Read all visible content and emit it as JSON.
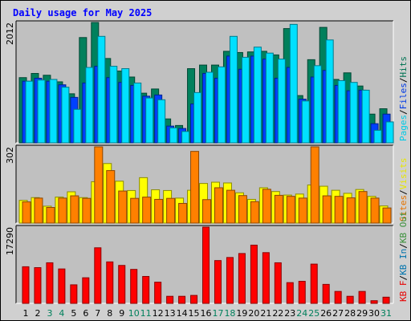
{
  "title": "Daily usage for May 2025",
  "colors": {
    "hits": "#00805c",
    "files": "#0040ff",
    "pages": "#00e0ff",
    "visits": "#ffff00",
    "sites": "#ff8000",
    "kb_in": "#0080c0",
    "kb_out": "#40a040",
    "kb_f": "#ff0000",
    "plot_bg": "#c0c0c0",
    "frame_bg": "#d0d0d0",
    "weekend": "#00805c",
    "weekday": "#000000"
  },
  "chart_data": [
    {
      "type": "bar",
      "name": "hits-files-pages",
      "ymax_label": "2012",
      "ymax": 2012,
      "legend": [
        {
          "text": "Pages",
          "key": "pages"
        },
        {
          "text": "/",
          "key": "sep"
        },
        {
          "text": "Files",
          "key": "files"
        },
        {
          "text": "/",
          "key": "sep"
        },
        {
          "text": "Hits",
          "key": "hits"
        }
      ],
      "series": [
        {
          "name": "Hits",
          "key": "hits",
          "values": [
            1090,
            1160,
            1130,
            1020,
            820,
            1760,
            2012,
            1410,
            1200,
            1100,
            830,
            900,
            400,
            290,
            1240,
            1300,
            1300,
            1530,
            1510,
            1520,
            1530,
            1470,
            1910,
            790,
            1390,
            1930,
            1060,
            1170,
            950,
            480,
            570
          ]
        },
        {
          "name": "Files",
          "key": "files",
          "values": [
            1030,
            1080,
            1030,
            970,
            760,
            1000,
            1280,
            1090,
            1010,
            960,
            780,
            800,
            280,
            240,
            650,
            1160,
            1080,
            1450,
            1230,
            1450,
            1400,
            1080,
            1260,
            730,
            1100,
            1210,
            960,
            870,
            880,
            320,
            480
          ]
        },
        {
          "name": "Pages",
          "key": "pages",
          "values": [
            1030,
            1050,
            1060,
            930,
            560,
            1260,
            1780,
            1280,
            1240,
            1000,
            750,
            720,
            250,
            190,
            840,
            1180,
            1270,
            1780,
            1430,
            1600,
            1500,
            1400,
            1980,
            700,
            1290,
            1720,
            1040,
            1010,
            880,
            210,
            350
          ]
        }
      ]
    },
    {
      "type": "bar",
      "name": "visits-sites",
      "ymax_label": "302",
      "ymax": 302,
      "legend": [
        {
          "text": "Sites",
          "key": "sites"
        },
        {
          "text": "/",
          "key": "sep"
        },
        {
          "text": "Visits",
          "key": "visits"
        }
      ],
      "series": [
        {
          "name": "Visits",
          "key": "visits",
          "values": [
            90,
            101,
            67,
            103,
            124,
            101,
            164,
            236,
            166,
            129,
            180,
            132,
            129,
            99,
            130,
            157,
            162,
            159,
            120,
            94,
            140,
            125,
            111,
            115,
            151,
            146,
            130,
            118,
            133,
            106,
            68
          ]
        },
        {
          "name": "Sites",
          "key": "sites",
          "values": [
            84,
            99,
            62,
            99,
            108,
            98,
            302,
            208,
            127,
            98,
            103,
            94,
            98,
            78,
            284,
            93,
            140,
            130,
            109,
            85,
            134,
            110,
            106,
            99,
            302,
            108,
            106,
            100,
            125,
            99,
            60
          ]
        }
      ]
    },
    {
      "type": "bar",
      "name": "kbytes",
      "ymax_label": "17290",
      "ymax": 17290,
      "legend": [
        {
          "text": "KB F",
          "key": "kb_f"
        },
        {
          "text": "/",
          "key": "sep"
        },
        {
          "text": "KB In",
          "key": "kb_in"
        },
        {
          "text": "/",
          "key": "sep"
        },
        {
          "text": "KB Out",
          "key": "kb_out"
        }
      ],
      "series": [
        {
          "name": "KB F",
          "key": "kb_f",
          "values": [
            8300,
            8100,
            9200,
            7800,
            4200,
            5800,
            12600,
            9400,
            8600,
            7700,
            6100,
            4800,
            1600,
            1600,
            1800,
            17290,
            9700,
            10400,
            11300,
            13200,
            11500,
            9200,
            4700,
            5000,
            8900,
            4300,
            2700,
            1600,
            2700,
            600,
            1400
          ]
        }
      ]
    }
  ],
  "days": [
    "1",
    "2",
    "3",
    "4",
    "5",
    "6",
    "7",
    "8",
    "9",
    "10",
    "11",
    "12",
    "13",
    "14",
    "15",
    "16",
    "17",
    "18",
    "19",
    "20",
    "21",
    "22",
    "23",
    "24",
    "25",
    "26",
    "27",
    "28",
    "29",
    "30",
    "31"
  ],
  "weekend_days": [
    3,
    4,
    10,
    11,
    17,
    18,
    24,
    25,
    31
  ]
}
